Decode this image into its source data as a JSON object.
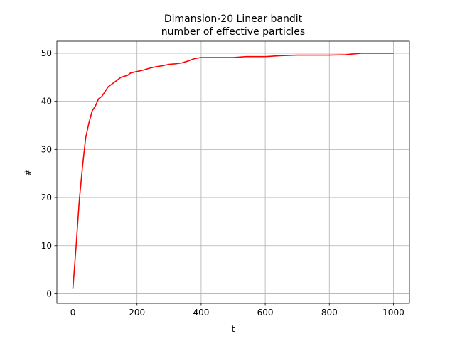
{
  "chart_data": {
    "type": "line",
    "title_lines": [
      "Dimansion-20 Linear bandit",
      "number of effective particles"
    ],
    "xlabel": "t",
    "ylabel": "#",
    "xlim": [
      -50,
      1050
    ],
    "ylim": [
      -2,
      52.5
    ],
    "xticks": [
      0,
      200,
      400,
      600,
      800,
      1000
    ],
    "yticks": [
      0,
      10,
      20,
      30,
      40,
      50
    ],
    "grid": true,
    "series": [
      {
        "color": "#ff0000",
        "x": [
          0,
          10,
          20,
          30,
          40,
          50,
          60,
          70,
          80,
          90,
          100,
          110,
          120,
          130,
          140,
          150,
          160,
          170,
          180,
          200,
          220,
          240,
          260,
          280,
          300,
          320,
          340,
          360,
          380,
          400,
          450,
          500,
          540,
          600,
          650,
          700,
          800,
          850,
          900,
          950,
          1000
        ],
        "y": [
          1,
          10,
          19.5,
          26.5,
          32.5,
          35.5,
          38,
          39,
          40.5,
          41,
          42,
          43,
          43.5,
          44,
          44.5,
          45,
          45.2,
          45.4,
          45.9,
          46.2,
          46.5,
          46.9,
          47.2,
          47.4,
          47.7,
          47.8,
          48,
          48.4,
          48.9,
          49.1,
          49.1,
          49.1,
          49.3,
          49.3,
          49.5,
          49.6,
          49.6,
          49.7,
          50,
          50,
          50
        ]
      }
    ]
  }
}
